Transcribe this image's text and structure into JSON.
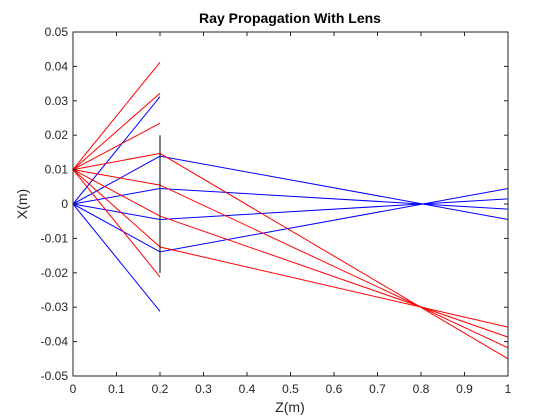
{
  "chart_data": {
    "type": "line",
    "title": "Ray Propagation With Lens",
    "xlabel": "Z(m)",
    "ylabel": "X(m)",
    "xlim": [
      0,
      1
    ],
    "ylim": [
      -0.05,
      0.05
    ],
    "xticks": [
      0,
      0.1,
      0.2,
      0.3,
      0.4,
      0.5,
      0.6,
      0.7,
      0.8,
      0.9,
      1
    ],
    "xtick_labels": [
      "0",
      "0.1",
      "0.2",
      "0.3",
      "0.4",
      "0.5",
      "0.6",
      "0.7",
      "0.8",
      "0.9",
      "1"
    ],
    "yticks": [
      0.05,
      0.04,
      0.03,
      0.02,
      0.01,
      0,
      -0.01,
      -0.02,
      -0.03,
      -0.04,
      -0.05
    ],
    "ytick_labels": [
      "0.05",
      "0.04",
      "0.03",
      "0.02",
      "0.01",
      "0",
      "-0.01",
      "-0.02",
      "-0.03",
      "-0.04",
      "-0.05"
    ],
    "grid": false,
    "colors": {
      "red_rays": "#ff0000",
      "blue_rays": "#0000ff",
      "lens": "#000000"
    },
    "lens": {
      "z": 0.2,
      "x_range": [
        -0.02,
        0.02
      ]
    },
    "series": [
      {
        "color": "#0000ff",
        "segments": [
          {
            "points": [
              [
                0,
                0
              ],
              [
                0.2,
                0.0312
              ]
            ]
          },
          {
            "points": [
              [
                0,
                0
              ],
              [
                0.2,
                -0.0312
              ]
            ]
          },
          {
            "points": [
              [
                0,
                0
              ],
              [
                0.2,
                0.0139
              ],
              [
                1,
                -0.0045
              ]
            ]
          },
          {
            "points": [
              [
                0,
                0
              ],
              [
                0.2,
                0.0045
              ],
              [
                1,
                -0.0015
              ]
            ]
          },
          {
            "points": [
              [
                0,
                0
              ],
              [
                0.2,
                -0.0045
              ],
              [
                1,
                0.0015
              ]
            ]
          },
          {
            "points": [
              [
                0,
                0
              ],
              [
                0.2,
                -0.0139
              ],
              [
                1,
                0.0045
              ]
            ]
          }
        ]
      },
      {
        "color": "#ff0000",
        "segments": [
          {
            "points": [
              [
                0,
                0.01
              ],
              [
                0.2,
                0.0412
              ]
            ]
          },
          {
            "points": [
              [
                0,
                0.01
              ],
              [
                0.2,
                0.0322
              ]
            ]
          },
          {
            "points": [
              [
                0,
                0.01
              ],
              [
                0.2,
                0.0235
              ]
            ]
          },
          {
            "points": [
              [
                0,
                0.01
              ],
              [
                0.2,
                -0.0212
              ]
            ]
          },
          {
            "points": [
              [
                0,
                0.01
              ],
              [
                0.2,
                0.0147
              ],
              [
                1,
                -0.045
              ]
            ]
          },
          {
            "points": [
              [
                0,
                0.01
              ],
              [
                0.2,
                0.0055
              ],
              [
                1,
                -0.0418
              ]
            ]
          },
          {
            "points": [
              [
                0,
                0.01
              ],
              [
                0.2,
                -0.0035
              ],
              [
                1,
                -0.0387
              ]
            ]
          },
          {
            "points": [
              [
                0,
                0.01
              ],
              [
                0.2,
                -0.0125
              ],
              [
                1,
                -0.0358
              ]
            ]
          }
        ]
      }
    ]
  }
}
